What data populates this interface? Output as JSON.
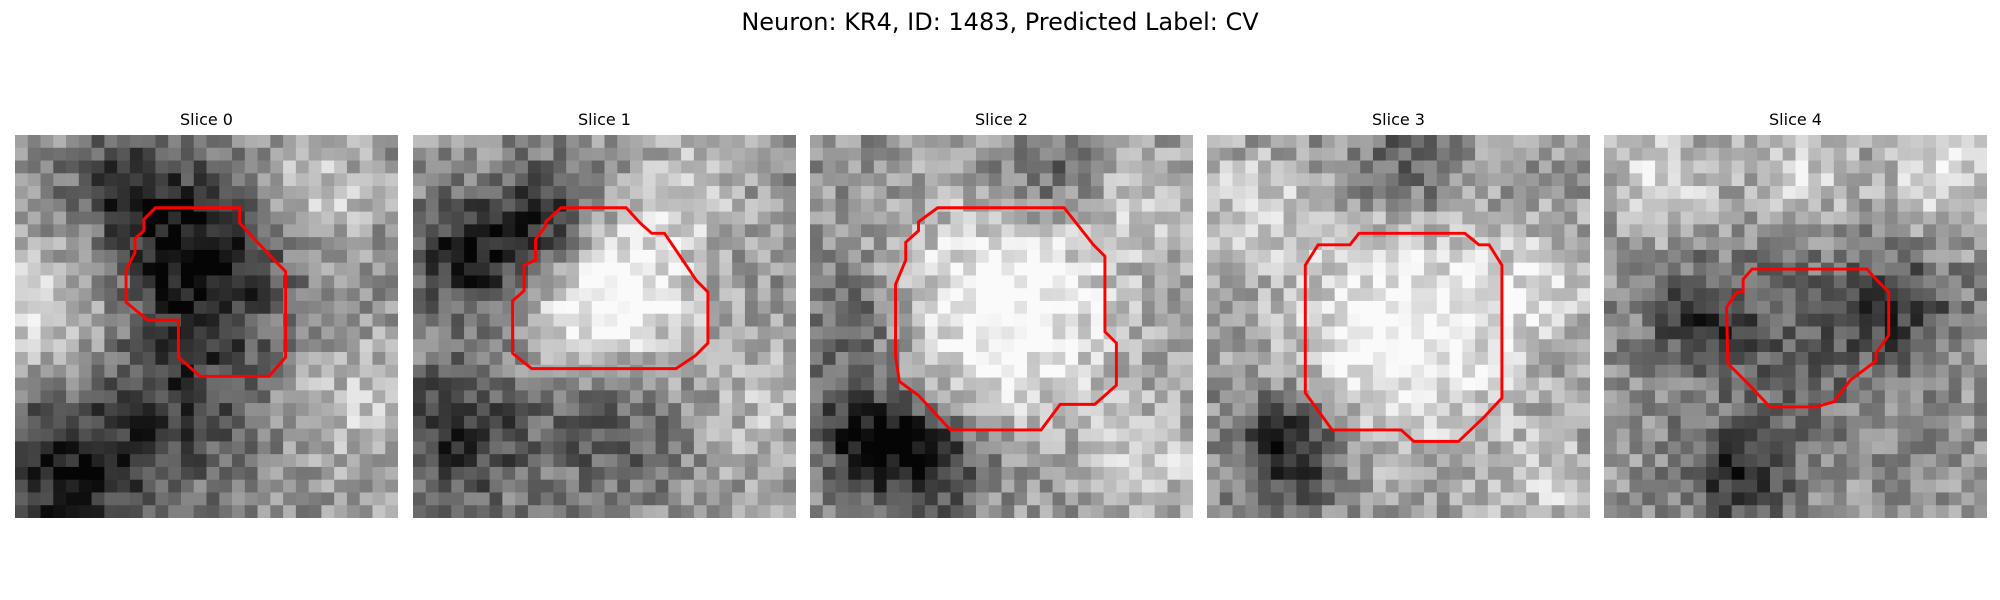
{
  "figure": {
    "suptitle": "Neuron: KR4, ID: 1483, Predicted Label: CV",
    "contour_color": "#ff0000",
    "slices": [
      {
        "title": "Slice 0"
      },
      {
        "title": "Slice 1"
      },
      {
        "title": "Slice 2"
      },
      {
        "title": "Slice 3"
      },
      {
        "title": "Slice 4"
      }
    ]
  }
}
